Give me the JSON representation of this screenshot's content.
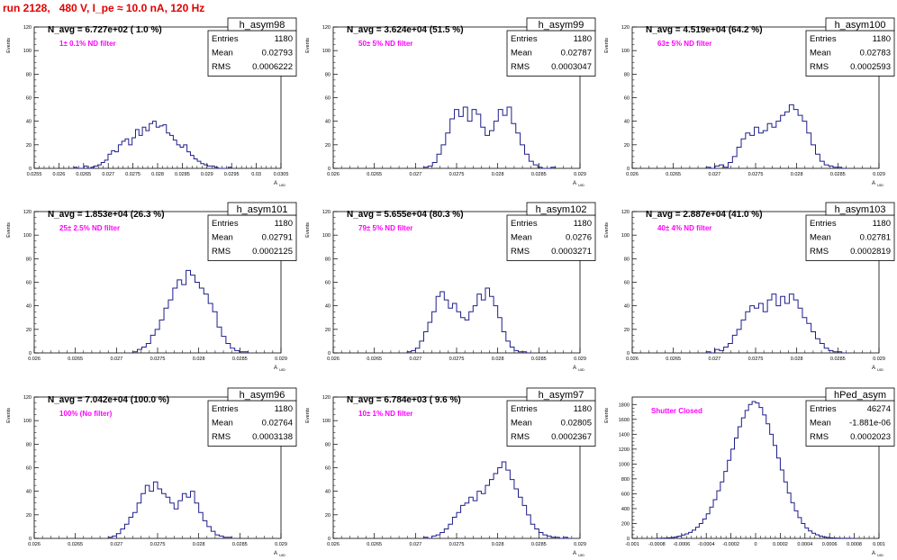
{
  "page_title": "run 2128,   480 V, I_pe ≈ 10.0 nA, 120 Hz",
  "colors": {
    "histogram": "#1e1e8c",
    "annotation": "#ff00ff",
    "title": "#e00000"
  },
  "chart_data": [
    {
      "type": "histogram",
      "name": "h_asym98",
      "stats": {
        "entries_label": "Entries",
        "entries": "1180",
        "mean_label": "Mean",
        "mean": "0.02793",
        "rms_label": "RMS",
        "rms": "0.0006222"
      },
      "headline": "N_avg = 6.727e+02 ( 1.0 %)",
      "note": "1± 0.1% ND filter",
      "ylabel": "Events",
      "xlabel": "A",
      "xlabel_sub": "UID",
      "xlim": [
        0.0255,
        0.0305
      ],
      "ylim": [
        0,
        120
      ],
      "xticks": [
        "0.0255",
        "0.026",
        "0.0265",
        "0.027",
        "0.0275",
        "0.028",
        "0.0285",
        "0.029",
        "0.0295",
        "0.03",
        "0.0305"
      ],
      "yticks": [
        "0",
        "20",
        "40",
        "60",
        "80",
        "100",
        "120"
      ],
      "bin_edges": [
        0.0263,
        0.0295
      ],
      "values": [
        1,
        0,
        0,
        2,
        0,
        1,
        2,
        3,
        5,
        7,
        12,
        15,
        14,
        20,
        23,
        25,
        20,
        26,
        33,
        28,
        35,
        32,
        38,
        40,
        35,
        36,
        37,
        30,
        28,
        24,
        20,
        18,
        20,
        14,
        11,
        8,
        6,
        4,
        3,
        2,
        2,
        1,
        0,
        0,
        0,
        1
      ]
    },
    {
      "type": "histogram",
      "name": "h_asym99",
      "stats": {
        "entries_label": "Entries",
        "entries": "1180",
        "mean_label": "Mean",
        "mean": "0.02787",
        "rms_label": "RMS",
        "rms": "0.0003047"
      },
      "headline": "N_avg = 3.624e+04 (51.5 %)",
      "note": "50± 5% ND filter",
      "ylabel": "Events",
      "xlabel": "A",
      "xlabel_sub": "UID",
      "xlim": [
        0.026,
        0.029
      ],
      "ylim": [
        0,
        120
      ],
      "xticks": [
        "0.026",
        "0.0265",
        "0.027",
        "0.0275",
        "0.028",
        "0.0285",
        "0.029"
      ],
      "yticks": [
        "0",
        "20",
        "40",
        "60",
        "80",
        "100",
        "120"
      ],
      "bin_edges": [
        0.0271,
        0.0287
      ],
      "values": [
        1,
        2,
        5,
        12,
        20,
        30,
        42,
        50,
        44,
        52,
        40,
        50,
        46,
        35,
        28,
        32,
        40,
        50,
        45,
        52,
        38,
        30,
        20,
        12,
        6,
        3,
        1,
        0,
        0,
        1
      ]
    },
    {
      "type": "histogram",
      "name": "h_asym100",
      "stats": {
        "entries_label": "Entries",
        "entries": "1180",
        "mean_label": "Mean",
        "mean": "0.02783",
        "rms_label": "RMS",
        "rms": "0.0002593"
      },
      "headline": "N_avg = 4.519e+04 (64.2 %)",
      "note": "63± 5% ND filter",
      "ylabel": "Events",
      "xlabel": "A",
      "xlabel_sub": "UID",
      "xlim": [
        0.026,
        0.029
      ],
      "ylim": [
        0,
        120
      ],
      "xticks": [
        "0.026",
        "0.0265",
        "0.027",
        "0.0275",
        "0.028",
        "0.0285",
        "0.029"
      ],
      "yticks": [
        "0",
        "20",
        "40",
        "60",
        "80",
        "100",
        "120"
      ],
      "bin_edges": [
        0.0269,
        0.0286
      ],
      "values": [
        1,
        0,
        2,
        3,
        1,
        5,
        10,
        18,
        25,
        30,
        28,
        35,
        30,
        32,
        38,
        35,
        40,
        45,
        48,
        54,
        50,
        45,
        40,
        30,
        20,
        12,
        6,
        3,
        2,
        1,
        1,
        0
      ]
    },
    {
      "type": "histogram",
      "name": "h_asym101",
      "stats": {
        "entries_label": "Entries",
        "entries": "1180",
        "mean_label": "Mean",
        "mean": "0.02791",
        "rms_label": "RMS",
        "rms": "0.0002125"
      },
      "headline": "N_avg = 1.853e+04 (26.3 %)",
      "note": "25± 2.5% ND filter",
      "ylabel": "Events",
      "xlabel": "A",
      "xlabel_sub": "UID",
      "xlim": [
        0.026,
        0.029
      ],
      "ylim": [
        0,
        120
      ],
      "xticks": [
        "0.026",
        "0.0265",
        "0.027",
        "0.0275",
        "0.028",
        "0.0285",
        "0.029"
      ],
      "yticks": [
        "0",
        "20",
        "40",
        "60",
        "80",
        "100",
        "120"
      ],
      "bin_edges": [
        0.0272,
        0.0286
      ],
      "values": [
        1,
        3,
        5,
        8,
        15,
        20,
        28,
        38,
        45,
        55,
        62,
        58,
        70,
        66,
        60,
        55,
        50,
        42,
        35,
        22,
        14,
        8,
        4,
        2,
        1,
        1
      ]
    },
    {
      "type": "histogram",
      "name": "h_asym102",
      "stats": {
        "entries_label": "Entries",
        "entries": "1180",
        "mean_label": "Mean",
        "mean": "0.0276",
        "rms_label": "RMS",
        "rms": "0.0003271"
      },
      "headline": "N_avg = 5.655e+04 (80.3 %)",
      "note": "79± 5% ND filter",
      "ylabel": "Events",
      "xlabel": "A",
      "xlabel_sub": "UID",
      "xlim": [
        0.026,
        0.029
      ],
      "ylim": [
        0,
        120
      ],
      "xticks": [
        "0.026",
        "0.0265",
        "0.027",
        "0.0275",
        "0.028",
        "0.0285",
        "0.029"
      ],
      "yticks": [
        "0",
        "20",
        "40",
        "60",
        "80",
        "100",
        "120"
      ],
      "bin_edges": [
        0.0269,
        0.0284
      ],
      "values": [
        1,
        2,
        4,
        10,
        18,
        26,
        35,
        48,
        52,
        45,
        38,
        42,
        35,
        30,
        28,
        35,
        40,
        50,
        45,
        55,
        48,
        40,
        30,
        18,
        10,
        5,
        2,
        1,
        1,
        0
      ]
    },
    {
      "type": "histogram",
      "name": "h_asym103",
      "stats": {
        "entries_label": "Entries",
        "entries": "1180",
        "mean_label": "Mean",
        "mean": "0.02781",
        "rms_label": "RMS",
        "rms": "0.0002819"
      },
      "headline": "N_avg = 2.887e+04 (41.0 %)",
      "note": "40± 4% ND filter",
      "ylabel": "Events",
      "xlabel": "A",
      "xlabel_sub": "UID",
      "xlim": [
        0.026,
        0.029
      ],
      "ylim": [
        0,
        120
      ],
      "xticks": [
        "0.026",
        "0.0265",
        "0.027",
        "0.0275",
        "0.028",
        "0.0285",
        "0.029"
      ],
      "yticks": [
        "0",
        "20",
        "40",
        "60",
        "80",
        "100",
        "120"
      ],
      "bin_edges": [
        0.0269,
        0.0286
      ],
      "values": [
        1,
        0,
        3,
        2,
        5,
        8,
        15,
        20,
        28,
        35,
        40,
        38,
        42,
        35,
        45,
        50,
        40,
        48,
        42,
        50,
        45,
        38,
        30,
        25,
        18,
        12,
        8,
        4,
        2,
        1,
        1,
        0
      ]
    },
    {
      "type": "histogram",
      "name": "h_asym96",
      "stats": {
        "entries_label": "Entries",
        "entries": "1180",
        "mean_label": "Mean",
        "mean": "0.02764",
        "rms_label": "RMS",
        "rms": "0.0003138"
      },
      "headline": "N_avg = 7.042e+04 (100.0 %)",
      "note": "100% (No filter)",
      "ylabel": "Events",
      "xlabel": "A",
      "xlabel_sub": "UID",
      "xlim": [
        0.026,
        0.029
      ],
      "ylim": [
        0,
        120
      ],
      "xticks": [
        "0.026",
        "0.0265",
        "0.027",
        "0.0275",
        "0.028",
        "0.0285",
        "0.029"
      ],
      "yticks": [
        "0",
        "20",
        "40",
        "60",
        "80",
        "100",
        "120"
      ],
      "bin_edges": [
        0.0269,
        0.0284
      ],
      "values": [
        1,
        2,
        4,
        8,
        12,
        18,
        22,
        30,
        38,
        45,
        40,
        48,
        42,
        38,
        35,
        30,
        25,
        32,
        38,
        35,
        40,
        30,
        22,
        15,
        10,
        6,
        3,
        2,
        1,
        1
      ]
    },
    {
      "type": "histogram",
      "name": "h_asym97",
      "stats": {
        "entries_label": "Entries",
        "entries": "1180",
        "mean_label": "Mean",
        "mean": "0.02805",
        "rms_label": "RMS",
        "rms": "0.0002367"
      },
      "headline": "N_avg = 6.784e+03 ( 9.6 %)",
      "note": "10± 1% ND filter",
      "ylabel": "Events",
      "xlabel": "A",
      "xlabel_sub": "UID",
      "xlim": [
        0.026,
        0.029
      ],
      "ylim": [
        0,
        120
      ],
      "xticks": [
        "0.026",
        "0.0265",
        "0.027",
        "0.0275",
        "0.028",
        "0.0285",
        "0.029"
      ],
      "yticks": [
        "0",
        "20",
        "40",
        "60",
        "80",
        "100",
        "120"
      ],
      "bin_edges": [
        0.0271,
        0.0289
      ],
      "values": [
        1,
        0,
        2,
        3,
        5,
        8,
        12,
        18,
        22,
        28,
        30,
        35,
        32,
        40,
        38,
        45,
        50,
        55,
        60,
        65,
        58,
        50,
        42,
        35,
        28,
        20,
        12,
        8,
        5,
        3,
        2,
        1,
        1,
        0,
        1,
        0
      ]
    },
    {
      "type": "histogram",
      "name": "hPed_asym",
      "stats": {
        "entries_label": "Entries",
        "entries": "46274",
        "mean_label": "Mean",
        "mean": "-1.881e-06",
        "rms_label": "RMS",
        "rms": "0.0002023"
      },
      "headline": "",
      "note": "Shutter Closed",
      "ylabel": "Events",
      "xlabel": "A",
      "xlabel_sub": "UID",
      "xlim": [
        -0.001,
        0.001
      ],
      "ylim": [
        0,
        1900
      ],
      "xticks": [
        "-0.001",
        "-0.0008",
        "-0.0006",
        "-0.0004",
        "-0.0002",
        "0",
        "0.0002",
        "0.0004",
        "0.0006",
        "0.0008",
        "0.001"
      ],
      "yticks": [
        "0",
        "200",
        "400",
        "600",
        "800",
        "1000",
        "1200",
        "1400",
        "1600",
        "1800"
      ],
      "bin_edges": [
        -0.0008,
        0.0008
      ],
      "values": [
        2,
        3,
        5,
        8,
        12,
        20,
        30,
        45,
        60,
        80,
        110,
        150,
        200,
        260,
        330,
        420,
        520,
        640,
        760,
        900,
        1050,
        1200,
        1350,
        1500,
        1620,
        1720,
        1800,
        1840,
        1820,
        1760,
        1660,
        1540,
        1400,
        1250,
        1080,
        920,
        760,
        610,
        480,
        370,
        280,
        200,
        140,
        100,
        70,
        48,
        32,
        20,
        13,
        8,
        5,
        3,
        2,
        1,
        1,
        0
      ]
    }
  ]
}
